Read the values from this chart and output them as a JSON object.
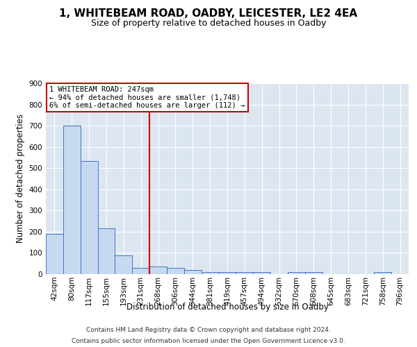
{
  "title": "1, WHITEBEAM ROAD, OADBY, LEICESTER, LE2 4EA",
  "subtitle": "Size of property relative to detached houses in Oadby",
  "xlabel": "Distribution of detached houses by size in Oadby",
  "ylabel": "Number of detached properties",
  "categories": [
    "42sqm",
    "80sqm",
    "117sqm",
    "155sqm",
    "193sqm",
    "231sqm",
    "268sqm",
    "306sqm",
    "344sqm",
    "381sqm",
    "419sqm",
    "457sqm",
    "494sqm",
    "532sqm",
    "570sqm",
    "608sqm",
    "645sqm",
    "683sqm",
    "721sqm",
    "758sqm",
    "796sqm"
  ],
  "values": [
    190,
    700,
    535,
    215,
    90,
    30,
    35,
    30,
    20,
    10,
    10,
    10,
    10,
    0,
    10,
    10,
    0,
    0,
    0,
    10,
    0
  ],
  "bar_color": "#c6d9f0",
  "bar_edge_color": "#4472c4",
  "property_line_x": 5.5,
  "annotation_text_line1": "1 WHITEBEAM ROAD: 247sqm",
  "annotation_text_line2": "← 94% of detached houses are smaller (1,748)",
  "annotation_text_line3": "6% of semi-detached houses are larger (112) →",
  "annotation_box_color": "#cc0000",
  "ylim": [
    0,
    900
  ],
  "yticks": [
    0,
    100,
    200,
    300,
    400,
    500,
    600,
    700,
    800,
    900
  ],
  "plot_bg_color": "#dce6f1",
  "grid_color": "#ffffff",
  "footer_line1": "Contains HM Land Registry data © Crown copyright and database right 2024.",
  "footer_line2": "Contains public sector information licensed under the Open Government Licence v3.0.",
  "title_fontsize": 11,
  "subtitle_fontsize": 9,
  "axis_label_fontsize": 8.5,
  "tick_fontsize": 7.5,
  "annotation_fontsize": 7.5,
  "footer_fontsize": 6.5
}
